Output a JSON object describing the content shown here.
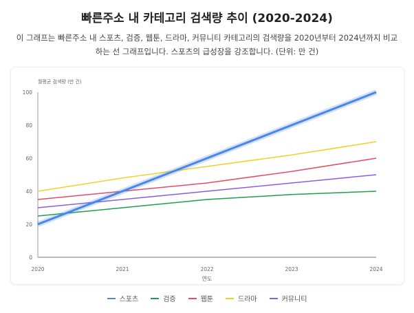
{
  "title": "빠른주소 내 카테고리 검색량 추이 (2020-2024)",
  "description": "이 그래프는 빠른주소 내 스포츠, 검증, 웹툰, 드라마, 커뮤니티 카테고리의 검색량을 2020년부터 2024년까지 비교하는 선 그래프입니다. 스포츠의 급성장을 강조합니다. (단위: 만 건)",
  "chart_data": {
    "type": "line",
    "title": "빠른주소 내 카테고리 검색량 추이 (2020-2024)",
    "xlabel": "연도",
    "ylabel": "월평균 검색량 (만 건)",
    "categories": [
      "2020",
      "2021",
      "2022",
      "2023",
      "2024"
    ],
    "ylim": [
      0,
      100
    ],
    "yticks": [
      0,
      20,
      40,
      60,
      80,
      100
    ],
    "grid": false,
    "legend": "bottom",
    "series": [
      {
        "name": "스포츠",
        "color": "#4a86e8",
        "values": [
          20,
          40,
          60,
          80,
          100
        ],
        "highlight": true
      },
      {
        "name": "검증",
        "color": "#1e9e4a",
        "values": [
          25,
          30,
          35,
          38,
          40
        ]
      },
      {
        "name": "웹툰",
        "color": "#e84a5f",
        "values": [
          35,
          40,
          45,
          52,
          60
        ]
      },
      {
        "name": "드라마",
        "color": "#f2d024",
        "values": [
          40,
          48,
          55,
          62,
          70
        ]
      },
      {
        "name": "커뮤니티",
        "color": "#8a5ce6",
        "values": [
          30,
          35,
          40,
          45,
          50
        ]
      }
    ]
  }
}
